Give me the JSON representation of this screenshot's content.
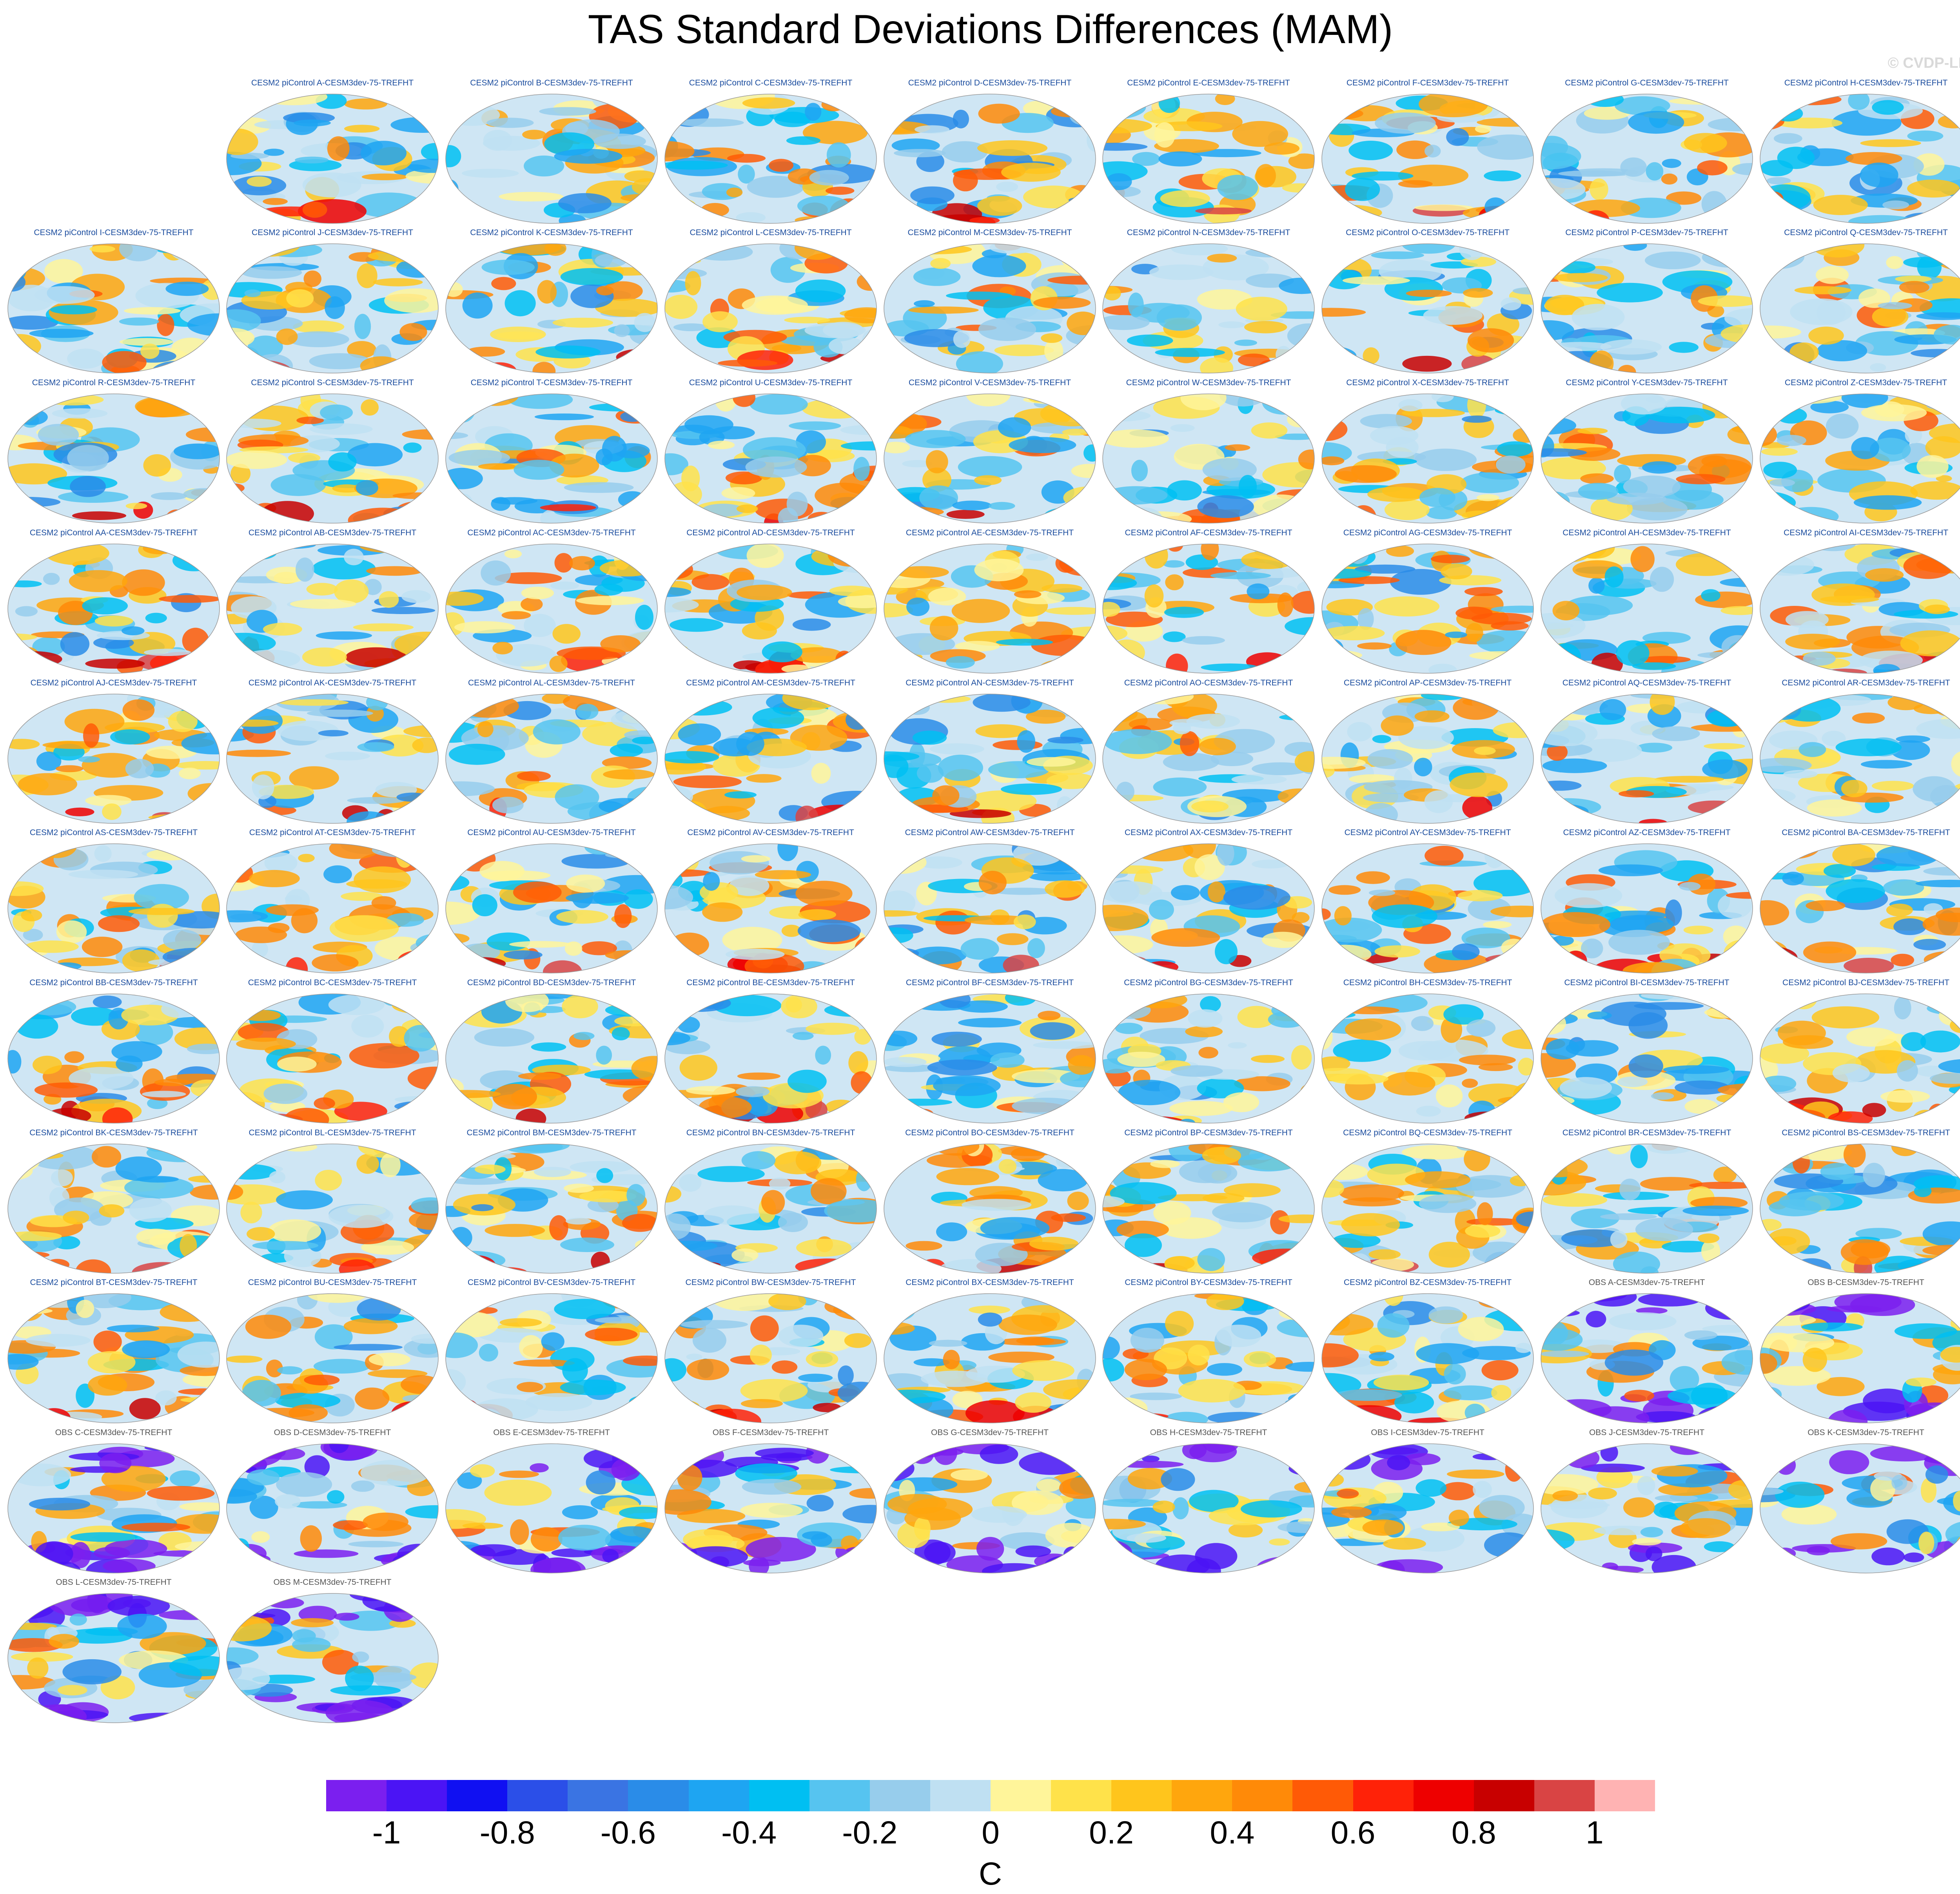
{
  "title": "TAS Standard Deviations Differences (MAM)",
  "watermark": "© CVDP-LE",
  "chart_data": {
    "type": "heatmap",
    "title": "TAS Standard Deviations Differences (MAM)",
    "projection": "Robinson global map",
    "panels": [
      {
        "label": "CESM2 piControl A-CESM3dev-75-TREFHT",
        "group": "model"
      },
      {
        "label": "CESM2 piControl B-CESM3dev-75-TREFHT",
        "group": "model"
      },
      {
        "label": "CESM2 piControl C-CESM3dev-75-TREFHT",
        "group": "model"
      },
      {
        "label": "CESM2 piControl D-CESM3dev-75-TREFHT",
        "group": "model"
      },
      {
        "label": "CESM2 piControl E-CESM3dev-75-TREFHT",
        "group": "model"
      },
      {
        "label": "CESM2 piControl F-CESM3dev-75-TREFHT",
        "group": "model"
      },
      {
        "label": "CESM2 piControl G-CESM3dev-75-TREFHT",
        "group": "model"
      },
      {
        "label": "CESM2 piControl H-CESM3dev-75-TREFHT",
        "group": "model"
      },
      {
        "label": "CESM2 piControl I-CESM3dev-75-TREFHT",
        "group": "model"
      },
      {
        "label": "CESM2 piControl J-CESM3dev-75-TREFHT",
        "group": "model"
      },
      {
        "label": "CESM2 piControl K-CESM3dev-75-TREFHT",
        "group": "model"
      },
      {
        "label": "CESM2 piControl L-CESM3dev-75-TREFHT",
        "group": "model"
      },
      {
        "label": "CESM2 piControl M-CESM3dev-75-TREFHT",
        "group": "model"
      },
      {
        "label": "CESM2 piControl N-CESM3dev-75-TREFHT",
        "group": "model"
      },
      {
        "label": "CESM2 piControl O-CESM3dev-75-TREFHT",
        "group": "model"
      },
      {
        "label": "CESM2 piControl P-CESM3dev-75-TREFHT",
        "group": "model"
      },
      {
        "label": "CESM2 piControl Q-CESM3dev-75-TREFHT",
        "group": "model"
      },
      {
        "label": "CESM2 piControl R-CESM3dev-75-TREFHT",
        "group": "model"
      },
      {
        "label": "CESM2 piControl S-CESM3dev-75-TREFHT",
        "group": "model"
      },
      {
        "label": "CESM2 piControl T-CESM3dev-75-TREFHT",
        "group": "model"
      },
      {
        "label": "CESM2 piControl U-CESM3dev-75-TREFHT",
        "group": "model"
      },
      {
        "label": "CESM2 piControl V-CESM3dev-75-TREFHT",
        "group": "model"
      },
      {
        "label": "CESM2 piControl W-CESM3dev-75-TREFHT",
        "group": "model"
      },
      {
        "label": "CESM2 piControl X-CESM3dev-75-TREFHT",
        "group": "model"
      },
      {
        "label": "CESM2 piControl Y-CESM3dev-75-TREFHT",
        "group": "model"
      },
      {
        "label": "CESM2 piControl Z-CESM3dev-75-TREFHT",
        "group": "model"
      },
      {
        "label": "CESM2 piControl AA-CESM3dev-75-TREFHT",
        "group": "model"
      },
      {
        "label": "CESM2 piControl AB-CESM3dev-75-TREFHT",
        "group": "model"
      },
      {
        "label": "CESM2 piControl AC-CESM3dev-75-TREFHT",
        "group": "model"
      },
      {
        "label": "CESM2 piControl AD-CESM3dev-75-TREFHT",
        "group": "model"
      },
      {
        "label": "CESM2 piControl AE-CESM3dev-75-TREFHT",
        "group": "model"
      },
      {
        "label": "CESM2 piControl AF-CESM3dev-75-TREFHT",
        "group": "model"
      },
      {
        "label": "CESM2 piControl AG-CESM3dev-75-TREFHT",
        "group": "model"
      },
      {
        "label": "CESM2 piControl AH-CESM3dev-75-TREFHT",
        "group": "model"
      },
      {
        "label": "CESM2 piControl AI-CESM3dev-75-TREFHT",
        "group": "model"
      },
      {
        "label": "CESM2 piControl AJ-CESM3dev-75-TREFHT",
        "group": "model"
      },
      {
        "label": "CESM2 piControl AK-CESM3dev-75-TREFHT",
        "group": "model"
      },
      {
        "label": "CESM2 piControl AL-CESM3dev-75-TREFHT",
        "group": "model"
      },
      {
        "label": "CESM2 piControl AM-CESM3dev-75-TREFHT",
        "group": "model"
      },
      {
        "label": "CESM2 piControl AN-CESM3dev-75-TREFHT",
        "group": "model"
      },
      {
        "label": "CESM2 piControl AO-CESM3dev-75-TREFHT",
        "group": "model"
      },
      {
        "label": "CESM2 piControl AP-CESM3dev-75-TREFHT",
        "group": "model"
      },
      {
        "label": "CESM2 piControl AQ-CESM3dev-75-TREFHT",
        "group": "model"
      },
      {
        "label": "CESM2 piControl AR-CESM3dev-75-TREFHT",
        "group": "model"
      },
      {
        "label": "CESM2 piControl AS-CESM3dev-75-TREFHT",
        "group": "model"
      },
      {
        "label": "CESM2 piControl AT-CESM3dev-75-TREFHT",
        "group": "model"
      },
      {
        "label": "CESM2 piControl AU-CESM3dev-75-TREFHT",
        "group": "model"
      },
      {
        "label": "CESM2 piControl AV-CESM3dev-75-TREFHT",
        "group": "model"
      },
      {
        "label": "CESM2 piControl AW-CESM3dev-75-TREFHT",
        "group": "model"
      },
      {
        "label": "CESM2 piControl AX-CESM3dev-75-TREFHT",
        "group": "model"
      },
      {
        "label": "CESM2 piControl AY-CESM3dev-75-TREFHT",
        "group": "model"
      },
      {
        "label": "CESM2 piControl AZ-CESM3dev-75-TREFHT",
        "group": "model"
      },
      {
        "label": "CESM2 piControl BA-CESM3dev-75-TREFHT",
        "group": "model"
      },
      {
        "label": "CESM2 piControl BB-CESM3dev-75-TREFHT",
        "group": "model"
      },
      {
        "label": "CESM2 piControl BC-CESM3dev-75-TREFHT",
        "group": "model"
      },
      {
        "label": "CESM2 piControl BD-CESM3dev-75-TREFHT",
        "group": "model"
      },
      {
        "label": "CESM2 piControl BE-CESM3dev-75-TREFHT",
        "group": "model"
      },
      {
        "label": "CESM2 piControl BF-CESM3dev-75-TREFHT",
        "group": "model"
      },
      {
        "label": "CESM2 piControl BG-CESM3dev-75-TREFHT",
        "group": "model"
      },
      {
        "label": "CESM2 piControl BH-CESM3dev-75-TREFHT",
        "group": "model"
      },
      {
        "label": "CESM2 piControl BI-CESM3dev-75-TREFHT",
        "group": "model"
      },
      {
        "label": "CESM2 piControl BJ-CESM3dev-75-TREFHT",
        "group": "model"
      },
      {
        "label": "CESM2 piControl BK-CESM3dev-75-TREFHT",
        "group": "model"
      },
      {
        "label": "CESM2 piControl BL-CESM3dev-75-TREFHT",
        "group": "model"
      },
      {
        "label": "CESM2 piControl BM-CESM3dev-75-TREFHT",
        "group": "model"
      },
      {
        "label": "CESM2 piControl BN-CESM3dev-75-TREFHT",
        "group": "model"
      },
      {
        "label": "CESM2 piControl BO-CESM3dev-75-TREFHT",
        "group": "model"
      },
      {
        "label": "CESM2 piControl BP-CESM3dev-75-TREFHT",
        "group": "model"
      },
      {
        "label": "CESM2 piControl BQ-CESM3dev-75-TREFHT",
        "group": "model"
      },
      {
        "label": "CESM2 piControl BR-CESM3dev-75-TREFHT",
        "group": "model"
      },
      {
        "label": "CESM2 piControl BS-CESM3dev-75-TREFHT",
        "group": "model"
      },
      {
        "label": "CESM2 piControl BT-CESM3dev-75-TREFHT",
        "group": "model"
      },
      {
        "label": "CESM2 piControl BU-CESM3dev-75-TREFHT",
        "group": "model"
      },
      {
        "label": "CESM2 piControl BV-CESM3dev-75-TREFHT",
        "group": "model"
      },
      {
        "label": "CESM2 piControl BW-CESM3dev-75-TREFHT",
        "group": "model"
      },
      {
        "label": "CESM2 piControl BX-CESM3dev-75-TREFHT",
        "group": "model"
      },
      {
        "label": "CESM2 piControl BY-CESM3dev-75-TREFHT",
        "group": "model"
      },
      {
        "label": "CESM2 piControl BZ-CESM3dev-75-TREFHT",
        "group": "model"
      },
      {
        "label": "OBS A-CESM3dev-75-TREFHT",
        "group": "obs"
      },
      {
        "label": "OBS B-CESM3dev-75-TREFHT",
        "group": "obs"
      },
      {
        "label": "OBS C-CESM3dev-75-TREFHT",
        "group": "obs"
      },
      {
        "label": "OBS D-CESM3dev-75-TREFHT",
        "group": "obs"
      },
      {
        "label": "OBS E-CESM3dev-75-TREFHT",
        "group": "obs"
      },
      {
        "label": "OBS F-CESM3dev-75-TREFHT",
        "group": "obs"
      },
      {
        "label": "OBS G-CESM3dev-75-TREFHT",
        "group": "obs"
      },
      {
        "label": "OBS H-CESM3dev-75-TREFHT",
        "group": "obs"
      },
      {
        "label": "OBS I-CESM3dev-75-TREFHT",
        "group": "obs"
      },
      {
        "label": "OBS J-CESM3dev-75-TREFHT",
        "group": "obs"
      },
      {
        "label": "OBS K-CESM3dev-75-TREFHT",
        "group": "obs"
      },
      {
        "label": "OBS L-CESM3dev-75-TREFHT",
        "group": "obs"
      },
      {
        "label": "OBS M-CESM3dev-75-TREFHT",
        "group": "obs"
      }
    ],
    "colorbar": {
      "units": "C",
      "range": [
        -1.1,
        1.1
      ],
      "boundaries": [
        -1.1,
        -1.0,
        -0.9,
        -0.8,
        -0.7,
        -0.6,
        -0.5,
        -0.4,
        -0.3,
        -0.2,
        -0.1,
        0,
        0.1,
        0.2,
        0.3,
        0.4,
        0.5,
        0.6,
        0.7,
        0.8,
        0.9,
        1.0,
        1.1
      ],
      "colors": [
        "#7b1fef",
        "#4b14f5",
        "#1010f2",
        "#2b4fe8",
        "#3a74e3",
        "#2a8ce8",
        "#1ea5f2",
        "#00bff2",
        "#56c4f0",
        "#97cdec",
        "#bfe0f2",
        "#fff59a",
        "#ffe24a",
        "#ffc51c",
        "#ffa60d",
        "#ff8a08",
        "#ff5a06",
        "#ff2208",
        "#ee0000",
        "#c80000",
        "#d94444",
        "#ffb3b3"
      ],
      "tick_values": [
        -1,
        -0.8,
        -0.6,
        -0.4,
        -0.2,
        0,
        0.2,
        0.4,
        0.6,
        0.8,
        1
      ],
      "tick_labels": [
        "-1",
        "-0.8",
        "-0.6",
        "-0.4",
        "-0.2",
        "0",
        "0.2",
        "0.4",
        "0.6",
        "0.8",
        "1"
      ]
    }
  }
}
